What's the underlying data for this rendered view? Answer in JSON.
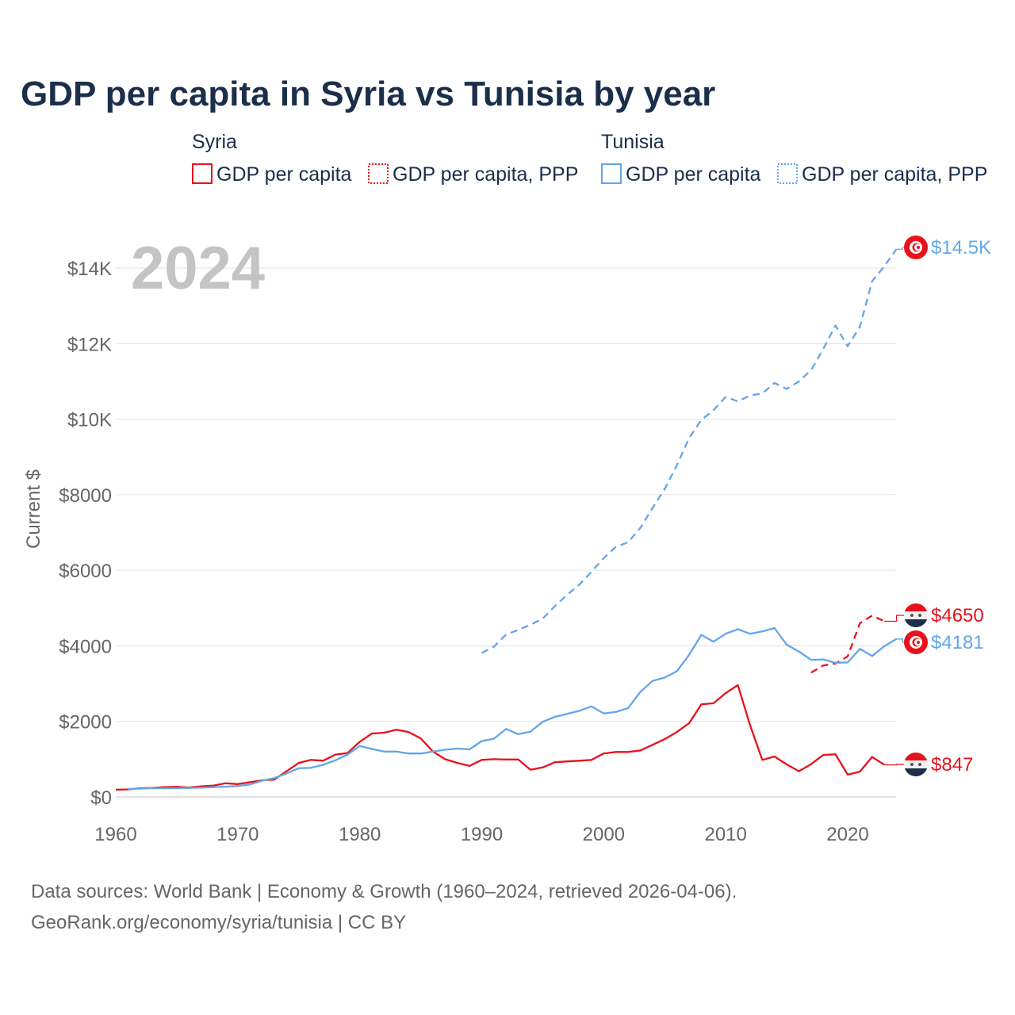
{
  "chart_data": {
    "type": "line",
    "title": "GDP per capita in Syria vs Tunisia by year",
    "ylabel": "Current $",
    "xlabel": "",
    "xlim": [
      1960,
      2024
    ],
    "ylim": [
      0,
      14500
    ],
    "x_ticks": [
      "1960",
      "1970",
      "1980",
      "1990",
      "2000",
      "2010",
      "2020"
    ],
    "y_ticks": [
      {
        "v": 0,
        "label": "$0"
      },
      {
        "v": 2000,
        "label": "$2000"
      },
      {
        "v": 4000,
        "label": "$4000"
      },
      {
        "v": 6000,
        "label": "$6000"
      },
      {
        "v": 8000,
        "label": "$8000"
      },
      {
        "v": 10000,
        "label": "$10K"
      },
      {
        "v": 12000,
        "label": "$12K"
      },
      {
        "v": 14000,
        "label": "$14K"
      }
    ],
    "grid": true,
    "current_year": "2024",
    "legend": {
      "placement": "top",
      "groups": [
        {
          "name": "Syria",
          "items": [
            "GDP per capita",
            "GDP per capita, PPP"
          ]
        },
        {
          "name": "Tunisia",
          "items": [
            "GDP per capita",
            "GDP per capita, PPP"
          ]
        }
      ]
    },
    "series": [
      {
        "name": "Syria GDP per capita",
        "country": "Syria",
        "color": "#e8121c",
        "dashed": false,
        "start": 1960,
        "end_label": "$847",
        "values": [
          190,
          200,
          230,
          240,
          260,
          270,
          250,
          280,
          300,
          360,
          340,
          390,
          440,
          460,
          680,
          900,
          980,
          960,
          1120,
          1160,
          1460,
          1680,
          1700,
          1780,
          1720,
          1550,
          1200,
          1000,
          900,
          820,
          980,
          1000,
          990,
          990,
          720,
          780,
          920,
          940,
          960,
          980,
          1150,
          1190,
          1190,
          1230,
          1380,
          1530,
          1720,
          1950,
          2450,
          2480,
          2750,
          2960,
          1900,
          980,
          1070,
          860,
          680,
          870,
          1110,
          1130,
          590,
          670,
          1060,
          847
        ]
      },
      {
        "name": "Syria GDP per capita, PPP",
        "country": "Syria",
        "color": "#e8121c",
        "dashed": true,
        "start": 2017,
        "end_label": "$4650",
        "values": [
          3290,
          3480,
          3530,
          3720,
          4600,
          4800,
          4650
        ]
      },
      {
        "name": "Tunisia GDP per capita",
        "country": "Tunisia",
        "color": "#63a6e8",
        "dashed": false,
        "start": 1961,
        "end_label": "$4181",
        "values": [
          210,
          220,
          230,
          230,
          235,
          240,
          245,
          260,
          270,
          290,
          330,
          430,
          500,
          620,
          760,
          770,
          850,
          970,
          1120,
          1350,
          1270,
          1200,
          1200,
          1150,
          1150,
          1200,
          1250,
          1280,
          1260,
          1480,
          1540,
          1800,
          1660,
          1730,
          1990,
          2120,
          2200,
          2280,
          2400,
          2210,
          2250,
          2350,
          2780,
          3070,
          3160,
          3330,
          3760,
          4290,
          4110,
          4320,
          4440,
          4320,
          4380,
          4470,
          4030,
          3850,
          3630,
          3640,
          3550,
          3560,
          3920,
          3730,
          3990,
          4181
        ]
      },
      {
        "name": "Tunisia GDP per capita, PPP",
        "country": "Tunisia",
        "color": "#63a6e8",
        "dashed": true,
        "start": 1990,
        "end_label": "$14.5K",
        "values": [
          3810,
          3980,
          4300,
          4420,
          4560,
          4720,
          5050,
          5350,
          5620,
          5960,
          6320,
          6620,
          6740,
          7120,
          7650,
          8150,
          8780,
          9500,
          9980,
          10240,
          10590,
          10470,
          10630,
          10680,
          10960,
          10800,
          11000,
          11300,
          11860,
          12480,
          11930,
          12450,
          13650,
          14050,
          14500
        ]
      }
    ]
  },
  "footer": {
    "line1": "Data sources: World Bank | Economy & Growth (1960–2024, retrieved 2026-04-06).",
    "line2": "GeoRank.org/economy/syria/tunisia | CC BY"
  }
}
